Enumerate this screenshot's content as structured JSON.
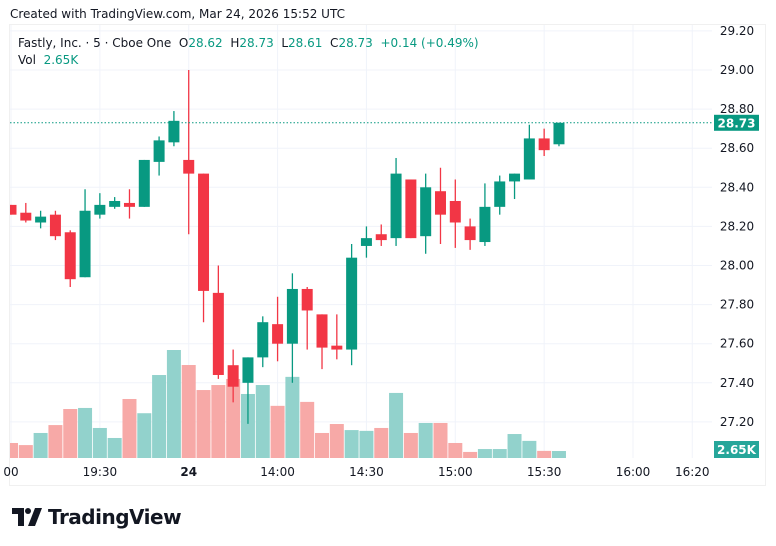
{
  "header": {
    "created": "Created with TradingView.com, Mar 24, 2026 15:52 UTC"
  },
  "legend": {
    "symbol": "Fastly, Inc. · 5 · Cboe One",
    "o_label": "O",
    "o": "28.62",
    "h_label": "H",
    "h": "28.73",
    "l_label": "L",
    "l": "28.61",
    "c_label": "C",
    "c": "28.73",
    "change": "+0.14 (+0.49%)",
    "vol_label": "Vol",
    "vol": "2.65K"
  },
  "branding": {
    "logo_text": "TradingView"
  },
  "colors": {
    "up": "#089981",
    "down": "#f23645",
    "vol_up": "#92d2cc",
    "vol_down": "#f7a9a7",
    "price_tag": "#089981",
    "vol_tag": "#26a69a"
  },
  "chart_data": {
    "type": "candlestick",
    "title": "Fastly, Inc. · 5 · Cboe One",
    "ylim": [
      27.1,
      29.22
    ],
    "y_ticks": [
      "29.20",
      "29.00",
      "28.80",
      "28.60",
      "28.40",
      "28.20",
      "28.00",
      "27.80",
      "27.60",
      "27.40",
      "27.20"
    ],
    "x_ticks": [
      {
        "label": "00",
        "bar": 1
      },
      {
        "label": "19:30",
        "bar": 7
      },
      {
        "label": "24",
        "bar": 13,
        "bold": true
      },
      {
        "label": "14:00",
        "bar": 19
      },
      {
        "label": "14:30",
        "bar": 25
      },
      {
        "label": "15:00",
        "bar": 31
      },
      {
        "label": "15:30",
        "bar": 37
      },
      {
        "label": "16:00",
        "bar": 43
      },
      {
        "label": "16:20",
        "bar": 47
      }
    ],
    "last_price": "28.73",
    "last_volume": "2.65K",
    "candles": [
      {
        "o": 28.31,
        "h": 28.31,
        "l": 28.26,
        "c": 28.26,
        "v": 5.7
      },
      {
        "o": 28.27,
        "h": 28.32,
        "l": 28.22,
        "c": 28.23,
        "v": 4.9
      },
      {
        "o": 28.22,
        "h": 28.28,
        "l": 28.19,
        "c": 28.25,
        "v": 9.5
      },
      {
        "o": 28.26,
        "h": 28.28,
        "l": 28.13,
        "c": 28.15,
        "v": 12.5
      },
      {
        "o": 28.17,
        "h": 28.18,
        "l": 27.89,
        "c": 27.93,
        "v": 18.6
      },
      {
        "o": 27.94,
        "h": 28.39,
        "l": 27.94,
        "c": 28.28,
        "v": 19.0
      },
      {
        "o": 28.26,
        "h": 28.37,
        "l": 28.24,
        "c": 28.31,
        "v": 11.4
      },
      {
        "o": 28.3,
        "h": 28.35,
        "l": 28.29,
        "c": 28.33,
        "v": 7.6
      },
      {
        "o": 28.32,
        "h": 28.39,
        "l": 28.24,
        "c": 28.3,
        "v": 22.4
      },
      {
        "o": 28.3,
        "h": 28.54,
        "l": 28.3,
        "c": 28.54,
        "v": 17.0
      },
      {
        "o": 28.53,
        "h": 28.66,
        "l": 28.46,
        "c": 28.64,
        "v": 31.5
      },
      {
        "o": 28.63,
        "h": 28.79,
        "l": 28.61,
        "c": 28.74,
        "v": 41.0
      },
      {
        "o": 28.54,
        "h": 29.0,
        "l": 28.16,
        "c": 28.47,
        "v": 35.3
      },
      {
        "o": 28.47,
        "h": 28.47,
        "l": 27.71,
        "c": 27.87,
        "v": 25.8
      },
      {
        "o": 27.86,
        "h": 28.0,
        "l": 27.42,
        "c": 27.44,
        "v": 27.7
      },
      {
        "o": 27.49,
        "h": 27.57,
        "l": 27.3,
        "c": 27.38,
        "v": 30.0
      },
      {
        "o": 27.4,
        "h": 27.53,
        "l": 27.19,
        "c": 27.53,
        "v": 24.3
      },
      {
        "o": 27.53,
        "h": 27.74,
        "l": 27.48,
        "c": 27.71,
        "v": 27.7
      },
      {
        "o": 27.7,
        "h": 27.84,
        "l": 27.51,
        "c": 27.6,
        "v": 19.8
      },
      {
        "o": 27.6,
        "h": 27.96,
        "l": 27.4,
        "c": 27.88,
        "v": 30.8
      },
      {
        "o": 27.88,
        "h": 27.89,
        "l": 27.57,
        "c": 27.77,
        "v": 21.3
      },
      {
        "o": 27.75,
        "h": 27.75,
        "l": 27.47,
        "c": 27.58,
        "v": 9.5
      },
      {
        "o": 27.59,
        "h": 27.75,
        "l": 27.52,
        "c": 27.57,
        "v": 12.9
      },
      {
        "o": 27.57,
        "h": 28.11,
        "l": 27.49,
        "c": 28.04,
        "v": 10.6
      },
      {
        "o": 28.1,
        "h": 28.2,
        "l": 28.04,
        "c": 28.14,
        "v": 10.3
      },
      {
        "o": 28.16,
        "h": 28.21,
        "l": 28.1,
        "c": 28.13,
        "v": 11.4
      },
      {
        "o": 28.14,
        "h": 28.55,
        "l": 28.1,
        "c": 28.47,
        "v": 24.7
      },
      {
        "o": 28.44,
        "h": 28.44,
        "l": 28.14,
        "c": 28.14,
        "v": 9.5
      },
      {
        "o": 28.15,
        "h": 28.47,
        "l": 28.06,
        "c": 28.4,
        "v": 13.3
      },
      {
        "o": 28.38,
        "h": 28.5,
        "l": 28.11,
        "c": 28.26,
        "v": 13.3
      },
      {
        "o": 28.33,
        "h": 28.44,
        "l": 28.09,
        "c": 28.22,
        "v": 5.7
      },
      {
        "o": 28.2,
        "h": 28.24,
        "l": 28.08,
        "c": 28.13,
        "v": 2.3
      },
      {
        "o": 28.12,
        "h": 28.42,
        "l": 28.1,
        "c": 28.3,
        "v": 3.4
      },
      {
        "o": 28.3,
        "h": 28.46,
        "l": 28.26,
        "c": 28.43,
        "v": 3.4
      },
      {
        "o": 28.43,
        "h": 28.47,
        "l": 28.34,
        "c": 28.47,
        "v": 9.1
      },
      {
        "o": 28.44,
        "h": 28.72,
        "l": 28.44,
        "c": 28.65,
        "v": 6.5
      },
      {
        "o": 28.65,
        "h": 28.7,
        "l": 28.56,
        "c": 28.59,
        "v": 2.7
      },
      {
        "o": 28.62,
        "h": 28.73,
        "l": 28.61,
        "c": 28.73,
        "v": 2.65
      }
    ],
    "volume_unit": "K"
  }
}
